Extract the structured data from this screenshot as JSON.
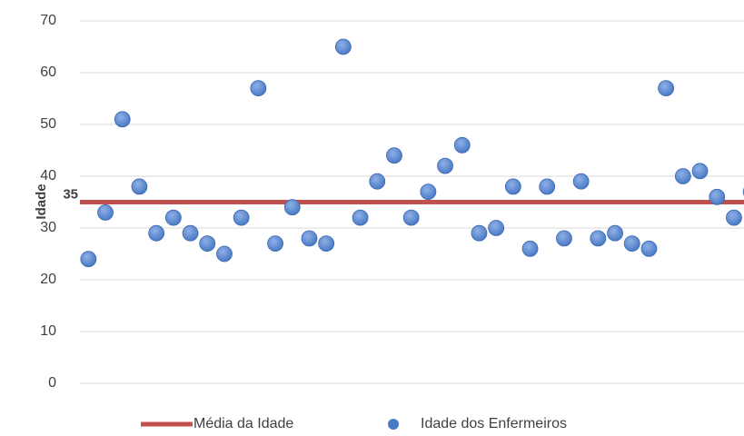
{
  "chart_data": {
    "type": "scatter",
    "y_label": "Idade",
    "x": [
      1,
      2,
      3,
      4,
      5,
      6,
      7,
      8,
      9,
      10,
      11,
      12,
      13,
      14,
      15,
      16,
      17,
      18,
      19,
      20,
      21,
      22,
      23,
      24,
      25,
      26,
      27,
      28,
      29,
      30,
      31,
      32,
      33,
      34,
      35,
      36,
      37,
      38,
      39,
      40
    ],
    "xlim": [
      0.5,
      40.5
    ],
    "series": [
      {
        "name": "Idade dos Enfermeiros",
        "color": "#4a7ac6",
        "values": [
          24,
          33,
          51,
          38,
          29,
          32,
          29,
          27,
          25,
          32,
          57,
          27,
          34,
          28,
          27,
          65,
          32,
          39,
          44,
          32,
          37,
          42,
          46,
          29,
          30,
          38,
          26,
          38,
          28,
          39,
          28,
          29,
          27,
          26,
          57,
          40,
          41,
          36,
          32,
          37
        ]
      }
    ],
    "mean": {
      "name": "Média da Idade",
      "value": 35,
      "color": "#c0504d"
    },
    "ylim": [
      0,
      70
    ],
    "yticks": [
      0,
      10,
      20,
      30,
      40,
      50,
      60,
      70
    ],
    "grid": true
  }
}
